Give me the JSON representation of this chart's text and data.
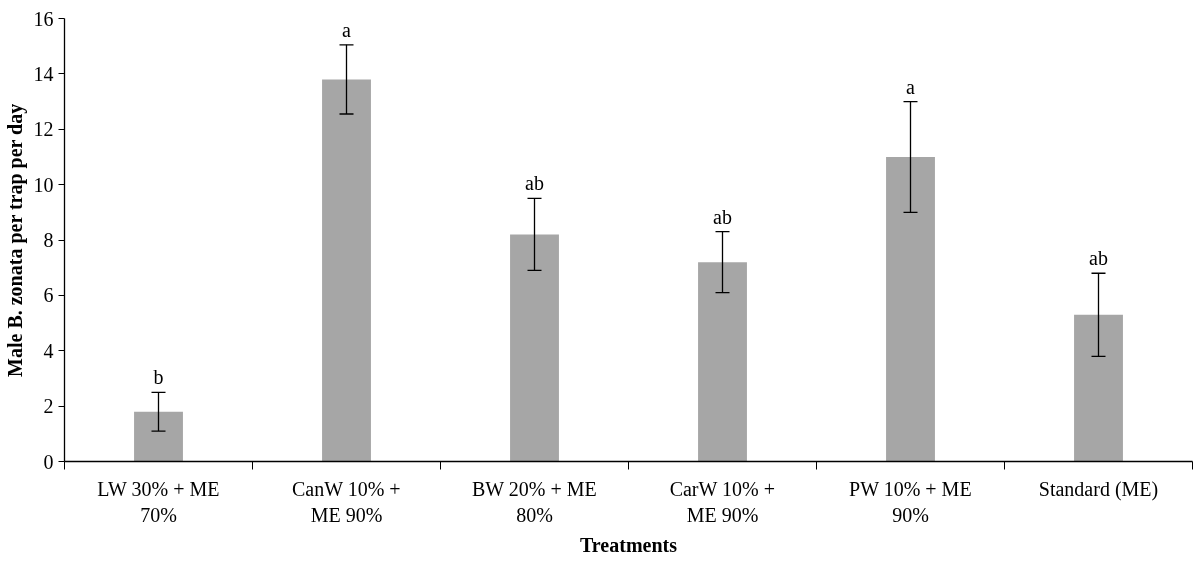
{
  "chart_data": {
    "type": "bar",
    "xlabel": "Treatments",
    "ylabel": "Male B. zonata per trap per day",
    "categories": [
      "LW 30% + ME\n70%",
      "CanW 10% +\nME 90%",
      "BW 20% + ME\n80%",
      "CarW 10% +\nME 90%",
      "PW 10% + ME\n90%",
      "Standard (ME)"
    ],
    "values": [
      1.8,
      13.8,
      8.2,
      7.2,
      11.0,
      5.3
    ],
    "errors": [
      0.7,
      1.25,
      1.3,
      1.1,
      2.0,
      1.5
    ],
    "color": "#a6a6a6",
    "ylim": [
      0,
      16
    ],
    "yticks": [
      0,
      2,
      4,
      6,
      8,
      10,
      12,
      14,
      16
    ],
    "grid": false,
    "annotations": [
      {
        "text": "b",
        "x": "LW 30% + ME\n70%",
        "y": 2.5
      },
      {
        "text": "a",
        "x": "CanW 10% +\nME 90%",
        "y": 15.05
      },
      {
        "text": "ab",
        "x": "BW 20% + ME\n80%",
        "y": 9.5
      },
      {
        "text": "ab",
        "x": "CarW 10% +\nME 90%",
        "y": 8.3
      },
      {
        "text": "a",
        "x": "PW 10% + ME\n90%",
        "y": 13.0
      },
      {
        "text": "ab",
        "x": "Standard (ME)",
        "y": 6.8
      }
    ]
  }
}
